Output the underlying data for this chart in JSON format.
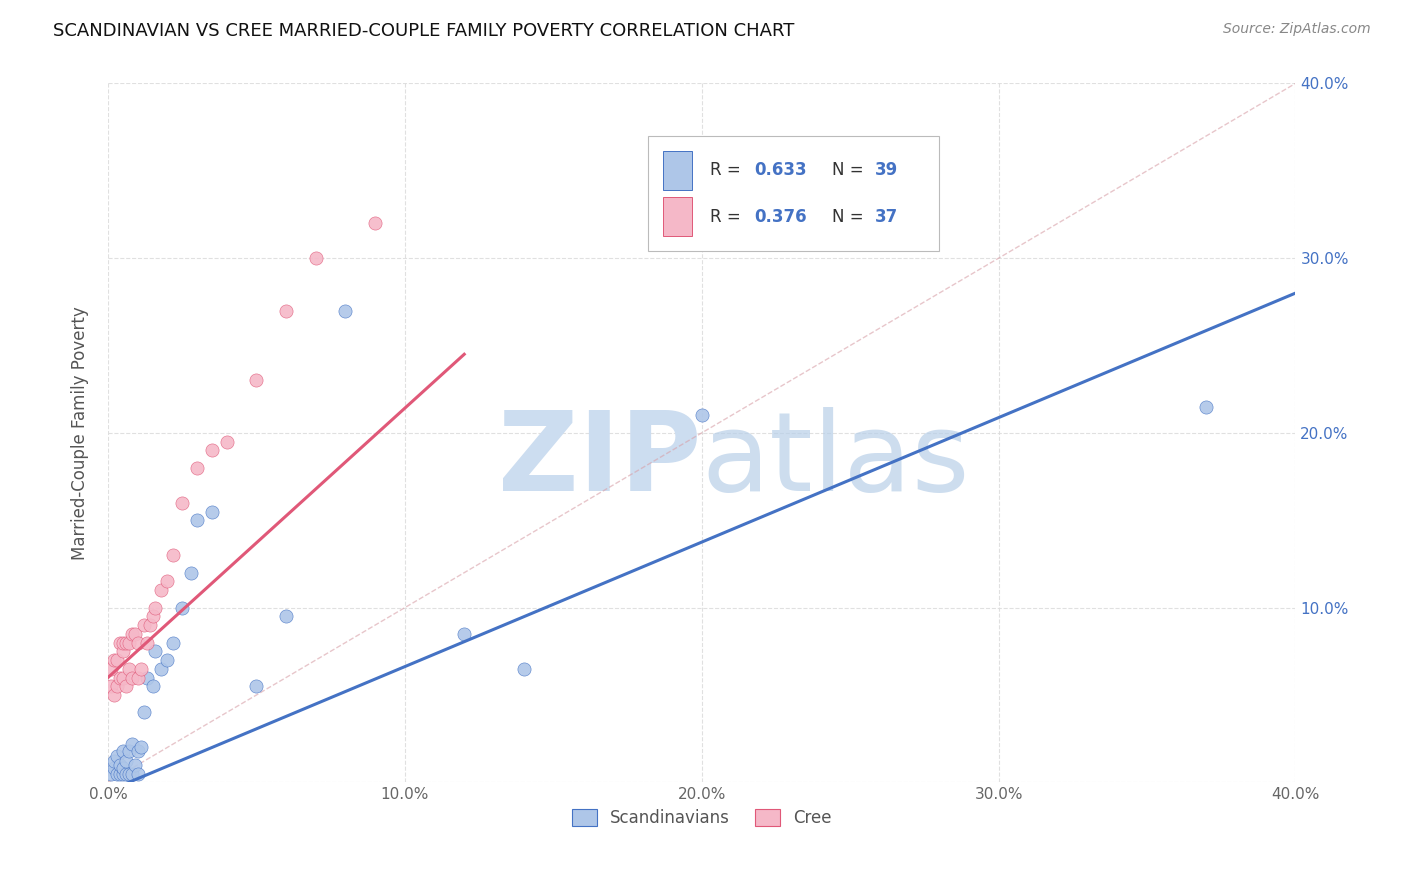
{
  "title": "SCANDINAVIAN VS CREE MARRIED-COUPLE FAMILY POVERTY CORRELATION CHART",
  "source": "Source: ZipAtlas.com",
  "ylabel": "Married-Couple Family Poverty",
  "xlim": [
    0.0,
    0.4
  ],
  "ylim": [
    0.0,
    0.4
  ],
  "xticks": [
    0.0,
    0.1,
    0.2,
    0.3,
    0.4
  ],
  "yticks": [
    0.0,
    0.1,
    0.2,
    0.3,
    0.4
  ],
  "xtick_labels": [
    "0.0%",
    "10.0%",
    "20.0%",
    "30.0%",
    "40.0%"
  ],
  "right_ytick_labels": [
    "",
    "10.0%",
    "20.0%",
    "30.0%",
    "40.0%"
  ],
  "scandinavian_color": "#aec6e8",
  "cree_color": "#f5b8c8",
  "trend_blue": "#4472c4",
  "trend_pink": "#e05878",
  "diag_color": "#d8a0a8",
  "watermark_color": "#ccddf0",
  "legend_label1": "Scandinavians",
  "legend_label2": "Cree",
  "scandinavian_x": [
    0.001,
    0.002,
    0.002,
    0.003,
    0.003,
    0.004,
    0.004,
    0.005,
    0.005,
    0.005,
    0.006,
    0.006,
    0.007,
    0.007,
    0.008,
    0.008,
    0.009,
    0.01,
    0.01,
    0.011,
    0.012,
    0.013,
    0.015,
    0.016,
    0.018,
    0.02,
    0.022,
    0.025,
    0.028,
    0.03,
    0.035,
    0.05,
    0.06,
    0.08,
    0.12,
    0.14,
    0.2,
    0.26,
    0.37
  ],
  "scandinavian_y": [
    0.005,
    0.008,
    0.012,
    0.005,
    0.015,
    0.005,
    0.01,
    0.005,
    0.008,
    0.018,
    0.005,
    0.012,
    0.005,
    0.018,
    0.005,
    0.022,
    0.01,
    0.005,
    0.018,
    0.02,
    0.04,
    0.06,
    0.055,
    0.075,
    0.065,
    0.07,
    0.08,
    0.1,
    0.12,
    0.15,
    0.155,
    0.055,
    0.095,
    0.27,
    0.085,
    0.065,
    0.21,
    0.355,
    0.215
  ],
  "cree_x": [
    0.001,
    0.001,
    0.002,
    0.002,
    0.003,
    0.003,
    0.004,
    0.004,
    0.005,
    0.005,
    0.005,
    0.006,
    0.006,
    0.007,
    0.007,
    0.008,
    0.008,
    0.009,
    0.01,
    0.01,
    0.011,
    0.012,
    0.013,
    0.014,
    0.015,
    0.016,
    0.018,
    0.02,
    0.022,
    0.025,
    0.03,
    0.035,
    0.04,
    0.05,
    0.06,
    0.07,
    0.09
  ],
  "cree_y": [
    0.055,
    0.065,
    0.05,
    0.07,
    0.055,
    0.07,
    0.06,
    0.08,
    0.06,
    0.075,
    0.08,
    0.055,
    0.08,
    0.065,
    0.08,
    0.06,
    0.085,
    0.085,
    0.06,
    0.08,
    0.065,
    0.09,
    0.08,
    0.09,
    0.095,
    0.1,
    0.11,
    0.115,
    0.13,
    0.16,
    0.18,
    0.19,
    0.195,
    0.23,
    0.27,
    0.3,
    0.32
  ],
  "scand_trend_x": [
    0.0,
    0.4
  ],
  "scand_trend_y_start": -0.005,
  "scand_trend_y_end": 0.28,
  "cree_trend_x": [
    0.0,
    0.12
  ],
  "cree_trend_y_start": 0.06,
  "cree_trend_y_end": 0.245
}
